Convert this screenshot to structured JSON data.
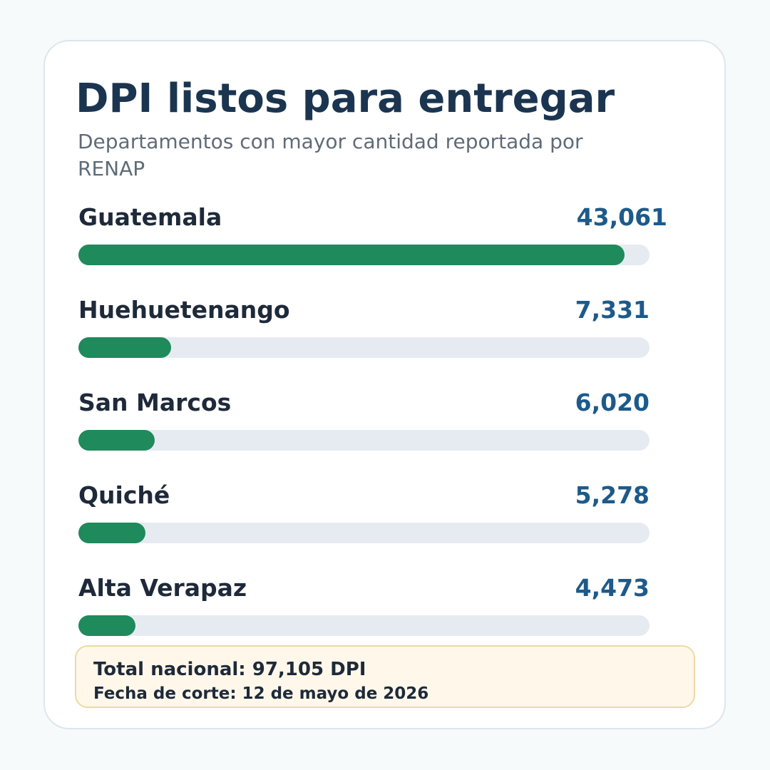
{
  "title": "DPI listos para entregar",
  "subtitle": "Departamentos con mayor cantidad reportada por RENAP",
  "chart_data": {
    "type": "bar",
    "orientation": "horizontal",
    "title": "DPI listos para entregar",
    "subtitle": "Departamentos con mayor cantidad reportada por RENAP",
    "categories": [
      "Guatemala",
      "Huehuetenango",
      "San Marcos",
      "Quiché",
      "Alta Verapaz"
    ],
    "values": [
      43061,
      7331,
      6020,
      5278,
      4473
    ],
    "value_labels": [
      "43,061",
      "7,331",
      "6,020",
      "5,278",
      "4,473"
    ],
    "xlim": [
      0,
      45000
    ],
    "xlabel": "",
    "ylabel": "",
    "grid": false,
    "legend": "none",
    "colors": {
      "bar": "#1f8a5b",
      "track": "#e6ebf2",
      "value_text": "#1d5a8a",
      "title_text": "#1b3550"
    }
  },
  "footer": {
    "total": "Total nacional: 97,105 DPI",
    "date": "Fecha de corte: 12 de mayo de 2026"
  }
}
